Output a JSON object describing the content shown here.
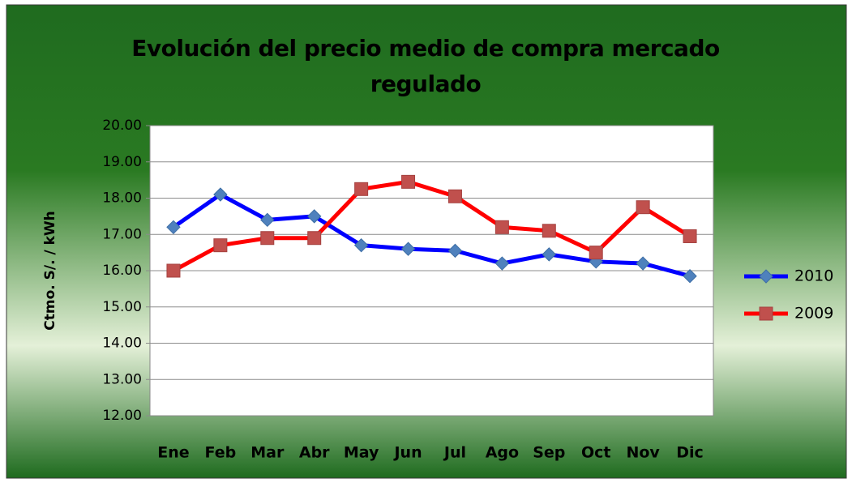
{
  "chart_data": {
    "type": "line",
    "title": "Evolución del precio medio de compra mercado regulado",
    "y_label": "Ctmo. S/. / kWh",
    "categories": [
      "Ene",
      "Feb",
      "Mar",
      "Abr",
      "May",
      "Jun",
      "Jul",
      "Ago",
      "Sep",
      "Oct",
      "Nov",
      "Dic"
    ],
    "series": [
      {
        "name": "2010",
        "color": "#0000ff",
        "marker_color": "#4f81bd",
        "marker": "diamond",
        "values": [
          17.2,
          18.1,
          17.4,
          17.5,
          16.7,
          16.6,
          16.55,
          16.2,
          16.45,
          16.25,
          16.2,
          15.85
        ]
      },
      {
        "name": "2009",
        "color": "#ff0000",
        "marker_color": "#c0504d",
        "marker": "square",
        "values": [
          16.0,
          16.7,
          16.9,
          16.9,
          18.25,
          18.45,
          18.05,
          17.2,
          17.1,
          16.5,
          17.75,
          16.95
        ]
      }
    ],
    "ylim": [
      12,
      20
    ],
    "yticks": [
      {
        "value": 12,
        "label": "12.00"
      },
      {
        "value": 13,
        "label": "13.00"
      },
      {
        "value": 14,
        "label": "14.00"
      },
      {
        "value": 15,
        "label": "15.00"
      },
      {
        "value": 16,
        "label": "16.00"
      },
      {
        "value": 17,
        "label": "17.00"
      },
      {
        "value": 18,
        "label": "18.00"
      },
      {
        "value": 19,
        "label": "19.00"
      },
      {
        "value": 20,
        "label": "20.00"
      }
    ],
    "grid": true,
    "legend": "right"
  }
}
